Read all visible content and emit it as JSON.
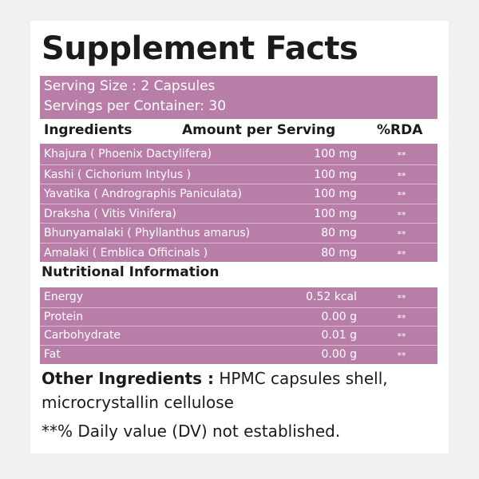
{
  "title": "Supplement Facts",
  "serving_size": "Serving Size : 2 Capsules",
  "servings_per_container": "Servings per Container: 30",
  "ingredients": {
    "headers": [
      "Ingredients",
      "Amount per Serving",
      "%RDA"
    ],
    "rows": [
      [
        "Khajura ( Phoenix Dactylifera)",
        "100 mg",
        "**"
      ],
      [
        "Kashi ( Cichorium Intylus )",
        "100 mg",
        "**"
      ],
      [
        "Yavatika ( Andrographis Paniculata)",
        "100 mg",
        "**"
      ],
      [
        "Draksha ( Vitis Vinifera)",
        "100 mg",
        "**"
      ],
      [
        "Bhunyamalaki ( Phyllanthus amarus)",
        "80 mg",
        "**"
      ],
      [
        "Amalaki ( Emblica Officinals )",
        "80 mg",
        "**"
      ]
    ]
  },
  "nutrition": {
    "title": "Nutritional Information",
    "rows": [
      [
        "Energy",
        "0.52 kcal",
        "**"
      ],
      [
        "Protein",
        "0.00 g",
        "**"
      ],
      [
        "Carbohydrate",
        "0.01 g",
        "**"
      ],
      [
        "Fat",
        "0.00 g",
        "**"
      ]
    ]
  },
  "other_ingredients": {
    "label": "Other Ingredients :",
    "lines": [
      "HPMC capsules shell,",
      "microcrystallin cellulose"
    ]
  },
  "footnote": "**% Daily value (DV) not established."
}
